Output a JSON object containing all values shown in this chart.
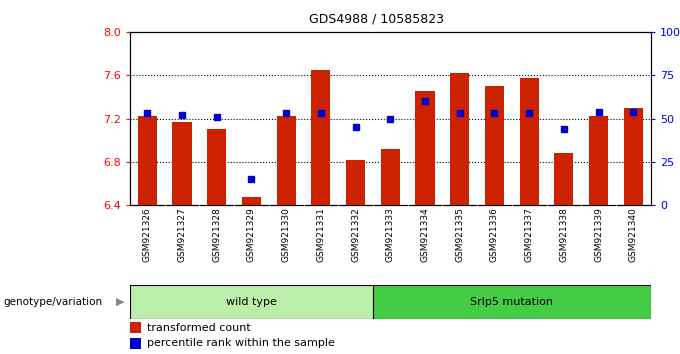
{
  "title": "GDS4988 / 10585823",
  "samples": [
    "GSM921326",
    "GSM921327",
    "GSM921328",
    "GSM921329",
    "GSM921330",
    "GSM921331",
    "GSM921332",
    "GSM921333",
    "GSM921334",
    "GSM921335",
    "GSM921336",
    "GSM921337",
    "GSM921338",
    "GSM921339",
    "GSM921340"
  ],
  "red_values": [
    7.22,
    7.17,
    7.1,
    6.48,
    7.22,
    7.65,
    6.82,
    6.92,
    7.45,
    7.62,
    7.5,
    7.57,
    6.88,
    7.22,
    7.3
  ],
  "blue_pct": [
    53,
    52,
    51,
    15,
    53,
    53,
    45,
    50,
    60,
    53,
    53,
    53,
    44,
    54,
    54
  ],
  "ymin": 6.4,
  "ymax": 8.0,
  "yticks_left": [
    6.4,
    6.8,
    7.2,
    7.6,
    8.0
  ],
  "yticks_right": [
    0,
    25,
    50,
    75,
    100
  ],
  "bar_color": "#cc2200",
  "dot_color": "#0000cc",
  "wild_type_color": "#bbeeaa",
  "mutation_color": "#44cc44",
  "wild_type_samples": 7,
  "wild_type_label": "wild type",
  "mutation_label": "Srlp5 mutation",
  "legend_red": "transformed count",
  "legend_blue": "percentile rank within the sample",
  "genotype_label": "genotype/variation",
  "xtick_bg": "#c8c8c8"
}
